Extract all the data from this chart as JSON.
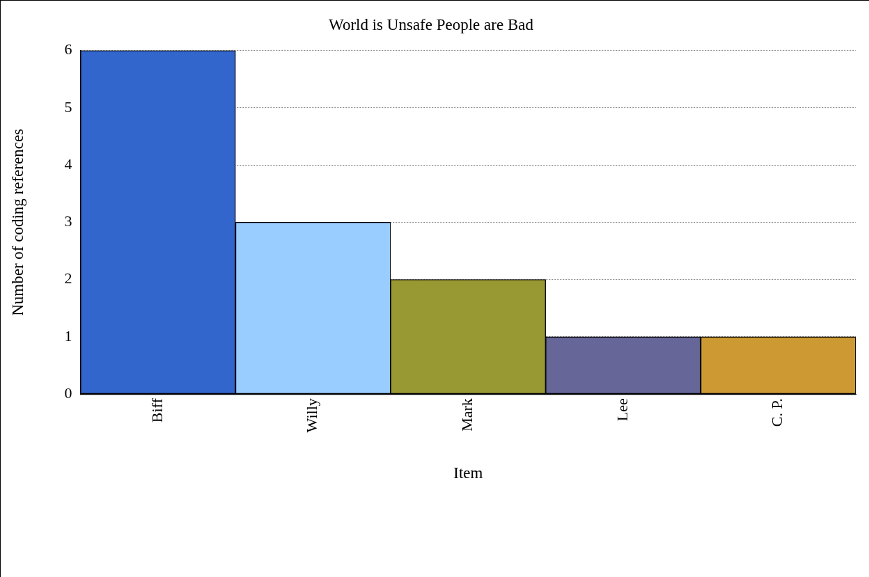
{
  "chart_data": {
    "type": "bar",
    "title": "World is Unsafe People are Bad",
    "xlabel": "Item",
    "ylabel": "Number of coding references",
    "categories": [
      "Biff",
      "Willy",
      "Mark",
      "Lee",
      "C. P."
    ],
    "values": [
      6,
      3,
      2,
      1,
      1
    ],
    "colors": [
      "#3366cc",
      "#99ccff",
      "#999933",
      "#666699",
      "#cc9933"
    ],
    "ylim": [
      0,
      6
    ],
    "yticks": [
      0,
      1,
      2,
      3,
      4,
      5,
      6
    ],
    "grid": "y"
  }
}
